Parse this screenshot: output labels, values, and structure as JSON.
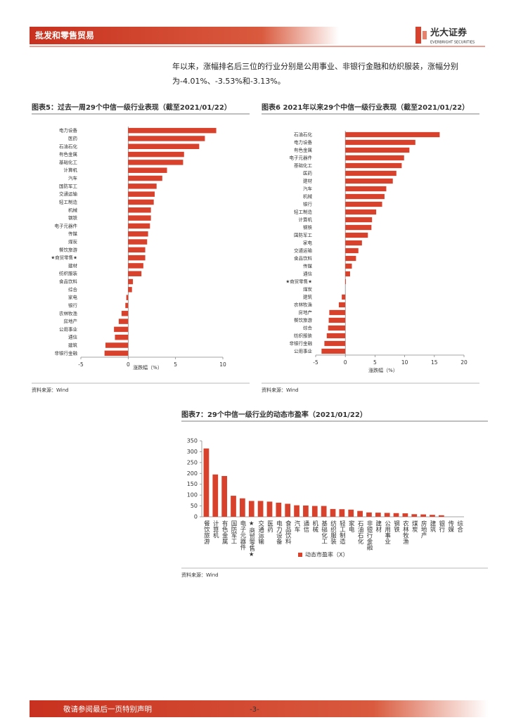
{
  "header": {
    "title": "批发和零售贸易",
    "logo": "光大证券",
    "logo_en": "EVERBRIGHT SECURITIES"
  },
  "paragraph": "年以来，涨幅排名后三位的行业分别是公用事业、非银行金融和纺织服装，涨幅分别为-4.01%、-3.53%和-3.13%。",
  "chart_data": [
    {
      "type": "bar",
      "orientation": "horizontal",
      "title": "图表5：过去一周29个中信一级行业表现（截至2021/01/22）",
      "xlabel": "涨跌幅（%）",
      "color": "#d8412b",
      "categories": [
        "电力设备",
        "医药",
        "石油石化",
        "有色金属",
        "基础化工",
        "计算机",
        "汽车",
        "国防军工",
        "交通运输",
        "轻工制造",
        "机械",
        "钢铁",
        "电子元器件",
        "传媒",
        "煤炭",
        "餐饮旅游",
        "★商贸零售★",
        "建材",
        "纺织服装",
        "食品饮料",
        "综合",
        "家电",
        "银行",
        "农林牧渔",
        "房地产",
        "公用事业",
        "通信",
        "建筑",
        "非银行金融"
      ],
      "values": [
        9.3,
        8.1,
        7.5,
        5.9,
        5.8,
        4.1,
        3.6,
        3.0,
        2.8,
        2.7,
        2.4,
        2.4,
        2.3,
        2.1,
        2.0,
        1.8,
        1.8,
        1.6,
        1.4,
        0.5,
        0.4,
        -0.2,
        -0.3,
        -0.7,
        -1.0,
        -1.5,
        -1.4,
        -2.4,
        -2.5
      ],
      "xlim": [
        -5,
        10
      ],
      "xticks": [
        -5,
        0,
        5,
        10
      ],
      "source": "资料来源：Wind"
    },
    {
      "type": "bar",
      "orientation": "horizontal",
      "title": "图表6 2021年以来29个中信一级行业表现（截至2021/01/22）",
      "xlabel": "涨跌幅（%）",
      "color": "#d8412b",
      "categories": [
        "石油石化",
        "电力设备",
        "有色金属",
        "电子元器件",
        "基础化工",
        "医药",
        "建材",
        "汽车",
        "机械",
        "银行",
        "轻工制造",
        "计算机",
        "钢铁",
        "国防军工",
        "家电",
        "交通运输",
        "食品饮料",
        "传媒",
        "通信",
        "★商贸零售★",
        "煤炭",
        "建筑",
        "农林牧渔",
        "房地产",
        "餐饮旅游",
        "综合",
        "纺织服装",
        "非银行金融",
        "公用事业"
      ],
      "values": [
        15.9,
        11.8,
        10.8,
        9.9,
        9.5,
        8.6,
        8.0,
        6.9,
        6.6,
        6.2,
        5.2,
        4.5,
        4.4,
        3.8,
        2.8,
        2.2,
        1.8,
        1.1,
        0.8,
        0.1,
        0,
        -0.6,
        -1.1,
        -2.7,
        -2.8,
        -2.9,
        -3.13,
        -3.53,
        -4.01
      ],
      "xlim": [
        -5,
        20
      ],
      "xticks": [
        -5,
        0,
        5,
        10,
        15,
        20
      ],
      "source": "资料来源：Wind"
    },
    {
      "type": "bar",
      "orientation": "vertical",
      "title": "图表7：29个中信一级行业的动态市盈率（2021/01/22）",
      "categories": [
        "餐饮旅游",
        "计算机",
        "有色金属",
        "国防军工",
        "电子元器件",
        "★商贸零售★",
        "交通运输",
        "医药",
        "电力设备",
        "食品饮料",
        "汽车",
        "通信",
        "机械",
        "基础化工",
        "纺织服装",
        "轻工制造",
        "家电",
        "石油石化",
        "非银行金融",
        "建材",
        "公用事业",
        "钢铁",
        "农林牧渔",
        "煤炭",
        "房地产",
        "建筑",
        "银行",
        "传媒",
        "综合"
      ],
      "series": [
        {
          "name": "动态市盈率（X）",
          "color": "#d8412b",
          "values": [
            315,
            195,
            188,
            97,
            85,
            73,
            73,
            70,
            65,
            60,
            53,
            52,
            50,
            50,
            36,
            35,
            33,
            27,
            20,
            19,
            18,
            17,
            16,
            12,
            11,
            9,
            7,
            null,
            null
          ]
        }
      ],
      "ylim": [
        0,
        350
      ],
      "yticks": [
        0,
        50,
        100,
        150,
        200,
        250,
        300,
        350
      ],
      "source": "资料来源：Wind"
    }
  ],
  "footer": {
    "notice": "敬请参阅最后一页特别声明",
    "page": "-3-"
  }
}
